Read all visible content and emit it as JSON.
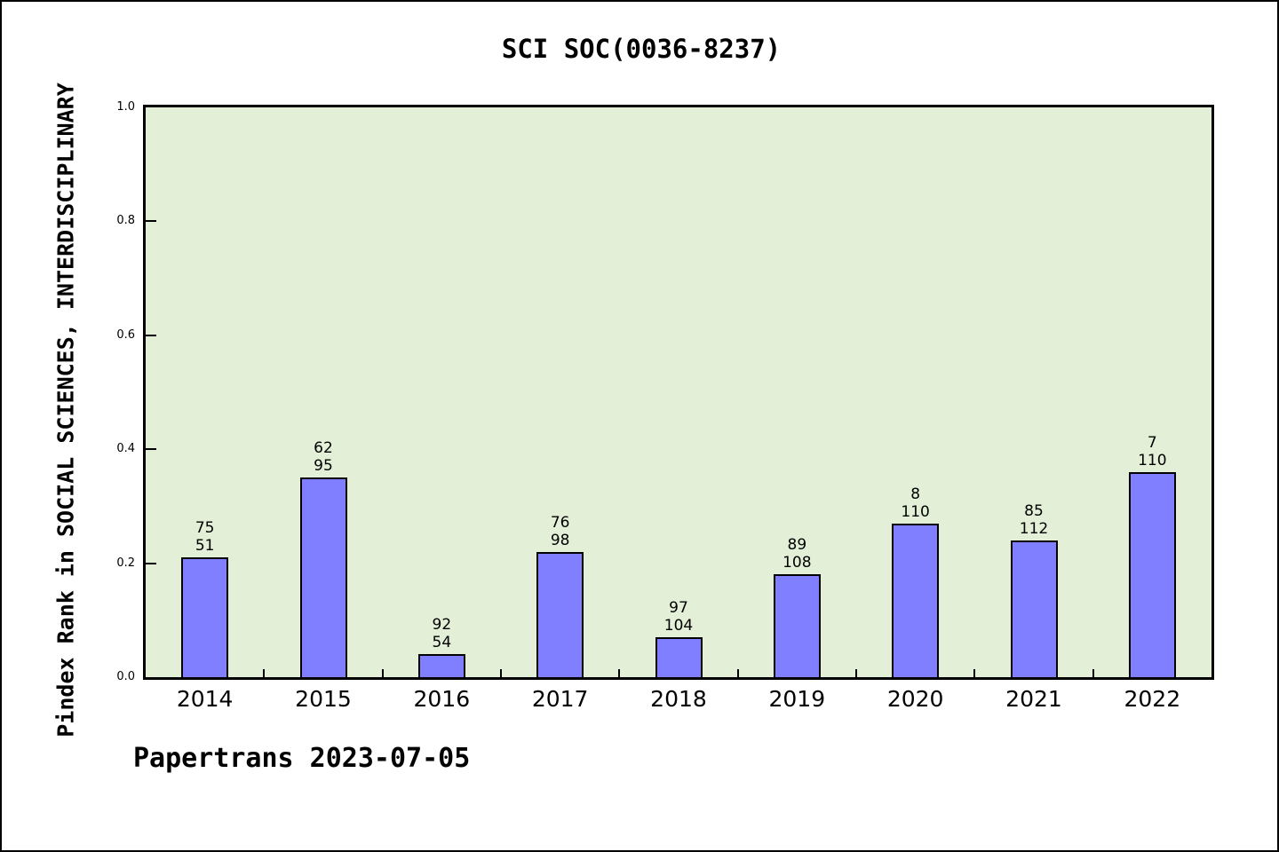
{
  "page": {
    "background": "#ffffff",
    "border_color": "#000000"
  },
  "chart_data": {
    "type": "bar",
    "title": "SCI SOC(0036-8237)",
    "xlabel": "",
    "ylabel": "Pindex Rank in SOCIAL SCIENCES, INTERDISCIPLINARY",
    "categories": [
      "2014",
      "2015",
      "2016",
      "2017",
      "2018",
      "2019",
      "2020",
      "2021",
      "2022"
    ],
    "values": [
      0.21,
      0.35,
      0.04,
      0.22,
      0.07,
      0.18,
      0.27,
      0.24,
      0.36
    ],
    "bar_labels": [
      [
        "75",
        "51"
      ],
      [
        "62",
        "95"
      ],
      [
        "92",
        "54"
      ],
      [
        "76",
        "98"
      ],
      [
        "97",
        "104"
      ],
      [
        "89",
        "108"
      ],
      [
        "8",
        "110"
      ],
      [
        "85",
        "112"
      ],
      [
        "7",
        "110"
      ]
    ],
    "ylim": [
      0.0,
      1.0
    ],
    "yticks": [
      0.0,
      0.2,
      0.4,
      0.6,
      0.8,
      1.0
    ],
    "ytick_labels": [
      "0.0",
      "0.2",
      "0.4",
      "0.6",
      "0.8",
      "1.0"
    ],
    "grid": false,
    "legend_position": "none",
    "bar_color": "#7f7fff",
    "bar_border_color": "#000000",
    "plot_bg": "#e3efd6",
    "footer": "Papertrans 2023-07-05"
  }
}
